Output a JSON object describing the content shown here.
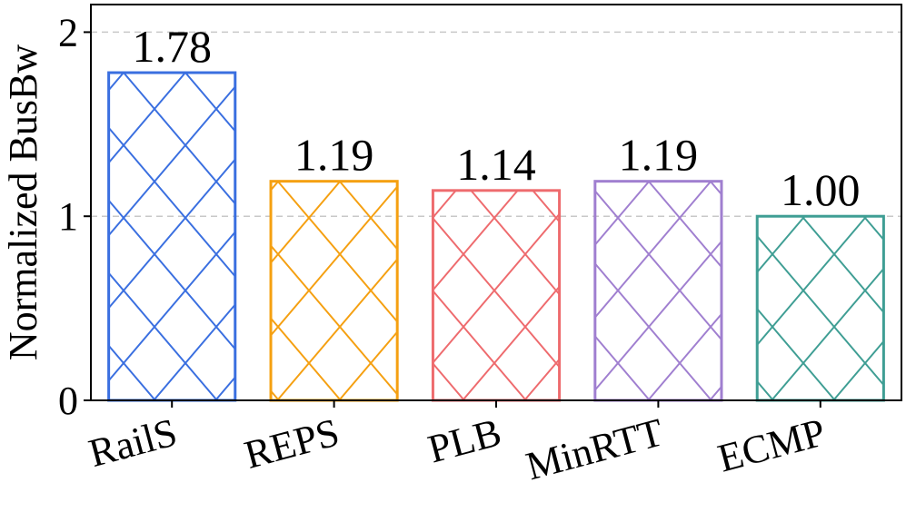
{
  "chart_data": {
    "type": "bar",
    "categories": [
      "RailS",
      "REPS",
      "PLB",
      "MinRTT",
      "ECMP"
    ],
    "values": [
      1.78,
      1.19,
      1.14,
      1.19,
      1.0
    ],
    "value_labels": [
      "1.78",
      "1.19",
      "1.14",
      "1.19",
      "1.00"
    ],
    "colors": [
      "#3a6fe0",
      "#f5a011",
      "#ee6b6e",
      "#a07fd0",
      "#3f9e94"
    ],
    "hatch": "crosshatch",
    "title": "",
    "xlabel": "",
    "ylabel": "Normalized BusBw",
    "ylim": [
      0,
      2.15
    ],
    "yticks": [
      0,
      1,
      2
    ],
    "ytick_labels": [
      "0",
      "1",
      "2"
    ],
    "grid": {
      "axis": "y",
      "style": "dashed",
      "color": "#c8c8c8"
    },
    "legend": "none"
  }
}
